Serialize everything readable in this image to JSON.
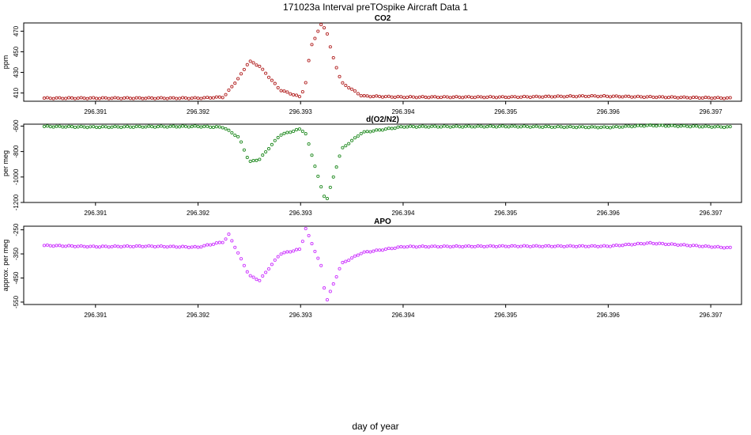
{
  "figure": {
    "title": "171023a   Interval preTOspike Aircraft Data 1",
    "xlabel": "day of year"
  },
  "chart_data": [
    {
      "type": "scatter",
      "title": "CO2",
      "xlabel": "",
      "ylabel": "ppm",
      "xlim": [
        296.3903,
        296.3973
      ],
      "ylim": [
        402,
        478
      ],
      "xticks": [
        296.391,
        296.392,
        296.393,
        296.394,
        296.395,
        296.396,
        296.397
      ],
      "xtick_labels": [
        "296.391",
        "296.392",
        "296.393",
        "296.394",
        "296.395",
        "296.396",
        "296.397"
      ],
      "yticks": [
        410,
        430,
        450,
        470
      ],
      "ytick_labels": [
        "410",
        "430",
        "450",
        "470"
      ],
      "marker_color": "#b22222",
      "grid": false,
      "x": [
        296.3905,
        296.391,
        296.3915,
        296.392,
        296.39225,
        296.3924,
        296.3925,
        296.3926,
        296.3928,
        296.393,
        296.39305,
        296.3931,
        296.3932,
        296.39325,
        296.3933,
        296.3934,
        296.3936,
        296.394,
        296.395,
        296.39585,
        296.3965,
        296.3972
      ],
      "y": [
        405,
        405,
        405,
        405,
        406,
        425,
        441,
        436,
        413,
        406,
        420,
        455,
        476,
        472,
        450,
        420,
        407,
        406,
        406,
        407,
        406,
        405
      ]
    },
    {
      "type": "scatter",
      "title": "d(O2/N2)",
      "xlabel": "",
      "ylabel": "per meg",
      "xlim": [
        296.3903,
        296.3973
      ],
      "ylim": [
        -1200,
        -585
      ],
      "xticks": [
        296.391,
        296.392,
        296.393,
        296.394,
        296.395,
        296.396,
        296.397
      ],
      "xtick_labels": [
        "296.391",
        "296.392",
        "296.393",
        "296.394",
        "296.395",
        "296.396",
        "296.397"
      ],
      "yticks": [
        -1200,
        -1000,
        -800,
        -600
      ],
      "ytick_labels": [
        "-1200",
        "-1000",
        "-800",
        "-600"
      ],
      "marker_color": "#228b22",
      "grid": false,
      "x": [
        296.3905,
        296.391,
        296.3915,
        296.392,
        296.39225,
        296.3924,
        296.3925,
        296.3926,
        296.3928,
        296.393,
        296.39305,
        296.3932,
        296.39325,
        296.3934,
        296.3936,
        296.394,
        296.395,
        296.396,
        296.3964,
        296.3972
      ],
      "y": [
        -603,
        -608,
        -605,
        -603,
        -610,
        -690,
        -882,
        -860,
        -670,
        -622,
        -660,
        -1080,
        -1195,
        -780,
        -650,
        -605,
        -603,
        -610,
        -595,
        -608
      ]
    },
    {
      "type": "scatter",
      "title": "APO",
      "xlabel": "",
      "ylabel": "approx. per meg",
      "xlim": [
        296.3903,
        296.3973
      ],
      "ylim": [
        -560,
        -235
      ],
      "xticks": [
        296.391,
        296.392,
        296.393,
        296.394,
        296.395,
        296.396,
        296.397
      ],
      "xtick_labels": [
        "296.391",
        "296.392",
        "296.393",
        "296.394",
        "296.395",
        "296.396",
        "296.397"
      ],
      "yticks": [
        -550,
        -450,
        -350,
        -250
      ],
      "ytick_labels": [
        "-550",
        "-450",
        "-350",
        "-250"
      ],
      "marker_color": "#cc33ff",
      "grid": false,
      "x": [
        296.3905,
        296.391,
        296.3915,
        296.392,
        296.39225,
        296.3923,
        296.3925,
        296.3926,
        296.3928,
        296.393,
        296.39305,
        296.3932,
        296.39325,
        296.3934,
        296.3936,
        296.394,
        296.395,
        296.396,
        296.3964,
        296.3972
      ],
      "y": [
        -315,
        -320,
        -318,
        -322,
        -300,
        -270,
        -440,
        -460,
        -350,
        -330,
        -245,
        -400,
        -550,
        -390,
        -345,
        -320,
        -318,
        -318,
        -305,
        -325
      ]
    }
  ]
}
